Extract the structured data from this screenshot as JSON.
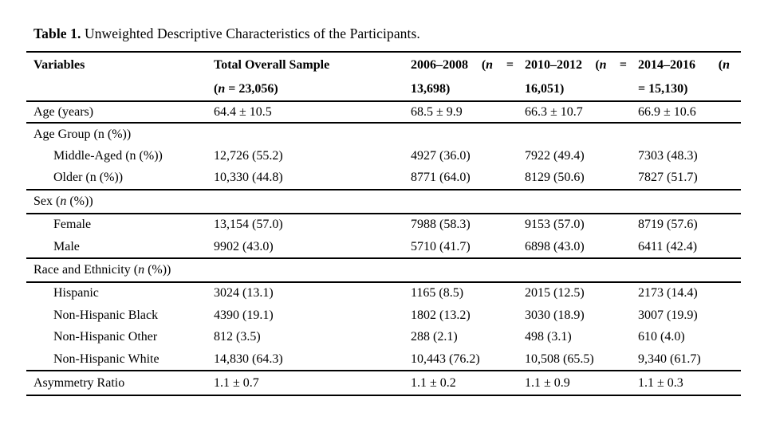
{
  "caption": {
    "label": "Table 1.",
    "text": "Unweighted Descriptive Characteristics of the Participants."
  },
  "table": {
    "header": {
      "col0": {
        "line1": "Variables",
        "line2": ""
      },
      "col1": {
        "line1": "Total Overall Sample",
        "line2": "(n = 23,056)"
      },
      "col2": {
        "line1": "2006–2008 (n =",
        "line2": "13,698)"
      },
      "col3": {
        "line1": "2010–2012 (n =",
        "line2": "16,051)"
      },
      "col4": {
        "line1": "2014–2016 (n",
        "line2": "= 15,130)"
      }
    },
    "rows": [
      {
        "label": "Age (years)",
        "values": [
          "64.4 ± 10.5",
          "68.5 ± 9.9",
          "66.3 ± 10.7",
          "66.9 ± 10.6"
        ]
      },
      {
        "label": "Age Group (n (%))",
        "values": [
          "",
          "",
          "",
          ""
        ]
      },
      {
        "label": "Middle-Aged (n (%))",
        "values": [
          "12,726 (55.2)",
          "4927 (36.0)",
          "7922 (49.4)",
          "7303 (48.3)"
        ]
      },
      {
        "label": "Older (n (%))",
        "values": [
          "10,330 (44.8)",
          "8771 (64.0)",
          "8129 (50.6)",
          "7827 (51.7)"
        ]
      },
      {
        "label": "Sex (n (%))",
        "values": [
          "",
          "",
          "",
          ""
        ]
      },
      {
        "label": "Female",
        "values": [
          "13,154 (57.0)",
          "7988 (58.3)",
          "9153 (57.0)",
          "8719 (57.6)"
        ]
      },
      {
        "label": "Male",
        "values": [
          "9902 (43.0)",
          "5710 (41.7)",
          "6898 (43.0)",
          "6411 (42.4)"
        ]
      },
      {
        "label": "Race and Ethnicity (n (%))",
        "values": [
          "",
          "",
          "",
          ""
        ]
      },
      {
        "label": "Hispanic",
        "values": [
          "3024 (13.1)",
          "1165 (8.5)",
          "2015 (12.5)",
          "2173 (14.4)"
        ]
      },
      {
        "label": "Non-Hispanic Black",
        "values": [
          "4390 (19.1)",
          "1802 (13.2)",
          "3030 (18.9)",
          "3007 (19.9)"
        ]
      },
      {
        "label": "Non-Hispanic Other",
        "values": [
          "812 (3.5)",
          "288 (2.1)",
          "498 (3.1)",
          "610 (4.0)"
        ]
      },
      {
        "label": "Non-Hispanic White",
        "values": [
          "14,830 (64.3)",
          "10,443 (76.2)",
          "10,508 (65.5)",
          "9,340 (61.7)"
        ]
      },
      {
        "label": "Asymmetry Ratio",
        "values": [
          "1.1 ± 0.7",
          "1.1 ± 0.2",
          "1.1 ± 0.9",
          "1.1 ± 0.3"
        ]
      }
    ]
  }
}
